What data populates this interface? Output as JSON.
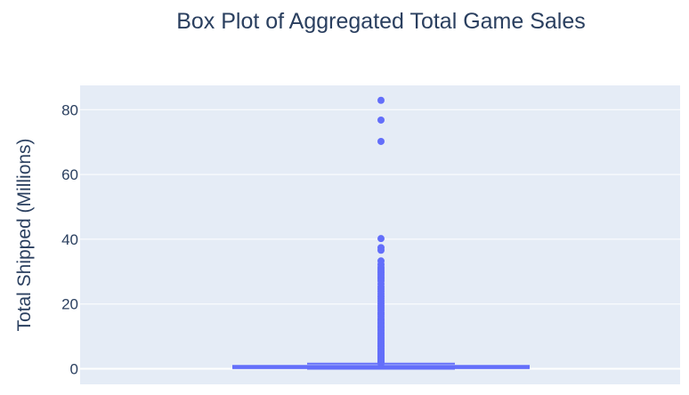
{
  "chart_data": {
    "type": "box",
    "title": "Box Plot of Aggregated Total Game Sales",
    "xlabel": "",
    "ylabel": "Total Shipped (Millions)",
    "ylim": [
      -4.8,
      87.5
    ],
    "yticks": [
      0,
      20,
      40,
      60,
      80
    ],
    "grid": true,
    "legend": "none",
    "colors": {
      "background": "#ffffff",
      "plot_bg": "#e5ecf6",
      "grid": "#ffffff",
      "box": "#636efa",
      "title": "#2a3f5f",
      "tick": "#2a3f5f"
    },
    "summary": {
      "lowerfence": 0,
      "q1": 0.2,
      "median": 0.4,
      "q3": 0.9,
      "upperfence": 1.6
    },
    "outliers": [
      82.9,
      76.8,
      70.2,
      40.2,
      37.4,
      36.6,
      33.3,
      32.2,
      31.4,
      30.8,
      30.2,
      29.6,
      29.0,
      28.4,
      27.8,
      27.1,
      26.2,
      25.3,
      24.6,
      23.9,
      23.1,
      22.3,
      21.6,
      20.9,
      20.1,
      19.4,
      18.8,
      18.1,
      17.4,
      16.8,
      16.1,
      15.4,
      14.9,
      14.3,
      13.8,
      13.2,
      12.7,
      12.2,
      11.7,
      11.1,
      10.6,
      10.1,
      9.6,
      9.1,
      8.6,
      8.1,
      7.7,
      7.2,
      6.8,
      6.3,
      5.9,
      5.5,
      5.1,
      4.7,
      4.3,
      3.9,
      3.6,
      3.2,
      2.9,
      2.6,
      2.3,
      2.1,
      1.9,
      1.7
    ]
  }
}
